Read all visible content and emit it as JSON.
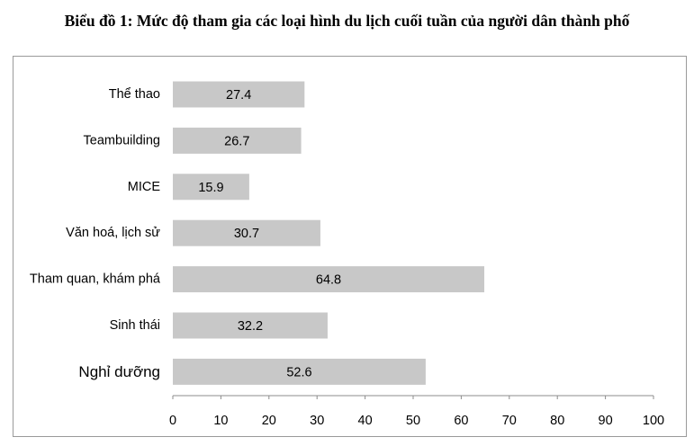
{
  "chart_data": {
    "type": "bar",
    "orientation": "horizontal",
    "title": "Biểu đồ 1: Mức độ tham gia các loại hình du lịch cuối tuần của người dân thành phố",
    "categories": [
      "Thể thao",
      "Teambuilding",
      "MICE",
      "Văn hoá, lịch sử",
      "Tham quan, khám phá",
      "Sinh thái",
      "Nghỉ dưỡng"
    ],
    "values": [
      27.4,
      26.7,
      15.9,
      30.7,
      64.8,
      32.2,
      52.6
    ],
    "value_labels": [
      "27.4",
      "26.7",
      "15.9",
      "30.7",
      "64.8",
      "32.2",
      "52.6"
    ],
    "xlim": [
      0,
      100
    ],
    "xticks": [
      "0",
      "10",
      "20",
      "30",
      "40",
      "50",
      "60",
      "70",
      "80",
      "90",
      "100"
    ],
    "xlabel": "",
    "ylabel": "",
    "grid": false,
    "legend": "none",
    "bar_color": "#c8c8c8",
    "axis_color": "#8c8c8c"
  }
}
